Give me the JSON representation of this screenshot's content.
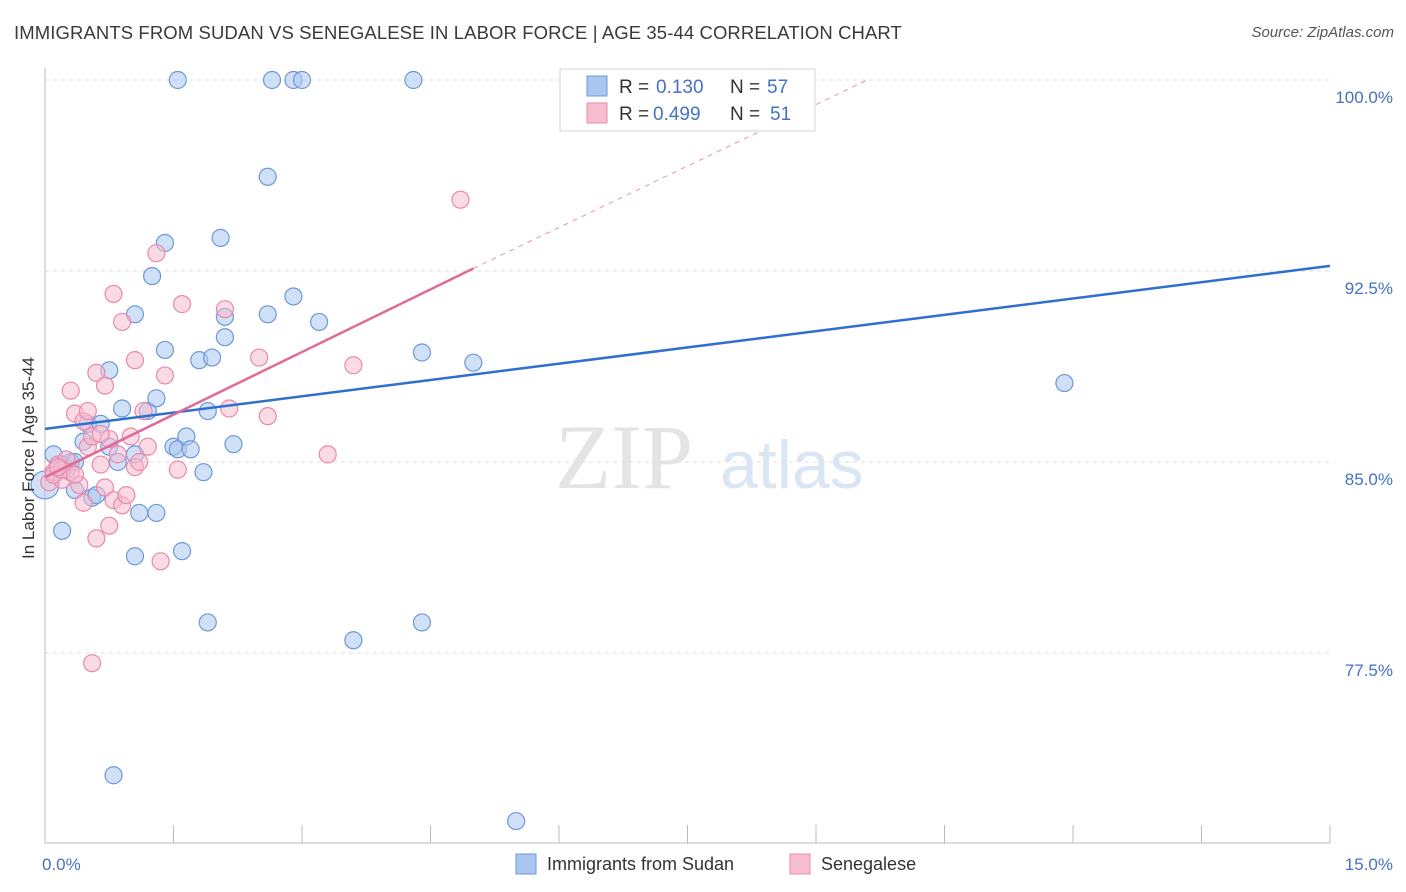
{
  "title": "IMMIGRANTS FROM SUDAN VS SENEGALESE IN LABOR FORCE | AGE 35-44 CORRELATION CHART",
  "source": "Source: ZipAtlas.com",
  "watermark": {
    "zip": "ZIP",
    "atlas": "atlas"
  },
  "colors": {
    "blue_fill": "#a9c6ee",
    "blue_stroke": "#6e98d8",
    "blue_line": "#2f6fce",
    "pink_fill": "#f6bccf",
    "pink_stroke": "#e88aab",
    "pink_line": "#e06b98",
    "grid": "#dddddd",
    "tick_label": "#4472c4"
  },
  "chart_data": {
    "type": "scatter",
    "xlabel": "",
    "ylabel": "In Labor Force | Age 35-44",
    "xlim": [
      0,
      15
    ],
    "ylim": [
      70.5,
      101
    ],
    "x_tick_labels": [
      {
        "value": 0,
        "label": "0.0%"
      },
      {
        "value": 15,
        "label": "15.0%"
      }
    ],
    "y_tick_labels": [
      {
        "value": 100,
        "label": "100.0%"
      },
      {
        "value": 92.5,
        "label": "92.5%"
      },
      {
        "value": 85,
        "label": "85.0%"
      },
      {
        "value": 77.5,
        "label": "77.5%"
      }
    ],
    "legend": [
      {
        "r_label": "R =",
        "r_value": "0.130",
        "n_label": "N =",
        "n_value": "57"
      },
      {
        "r_label": "R =",
        "r_value": "0.499",
        "n_label": "N =",
        "n_value": "51"
      }
    ],
    "series": [
      {
        "name": "Immigrants from Sudan",
        "color": "blue",
        "trend": {
          "x0": 0,
          "y0": 86.3,
          "x1": 15,
          "y1": 92.7
        },
        "points": [
          [
            0.0,
            84.1
          ],
          [
            0.1,
            85.3
          ],
          [
            0.2,
            84.9
          ],
          [
            0.25,
            84.7
          ],
          [
            0.2,
            82.3
          ],
          [
            0.35,
            83.9
          ],
          [
            0.45,
            85.8
          ],
          [
            0.5,
            86.5
          ],
          [
            0.55,
            83.6
          ],
          [
            0.65,
            86.5
          ],
          [
            0.75,
            85.6
          ],
          [
            0.75,
            88.6
          ],
          [
            0.85,
            85.0
          ],
          [
            0.9,
            87.1
          ],
          [
            1.05,
            85.3
          ],
          [
            1.05,
            81.3
          ],
          [
            1.05,
            90.8
          ],
          [
            1.1,
            83.0
          ],
          [
            1.2,
            87.0
          ],
          [
            1.25,
            92.3
          ],
          [
            1.3,
            87.5
          ],
          [
            1.3,
            83.0
          ],
          [
            1.4,
            89.4
          ],
          [
            1.4,
            93.6
          ],
          [
            1.5,
            85.6
          ],
          [
            1.55,
            85.5
          ],
          [
            1.6,
            81.5
          ],
          [
            1.65,
            86.0
          ],
          [
            1.7,
            85.5
          ],
          [
            1.8,
            89.0
          ],
          [
            1.85,
            84.6
          ],
          [
            1.9,
            87.0
          ],
          [
            1.95,
            89.1
          ],
          [
            2.05,
            93.8
          ],
          [
            2.1,
            89.9
          ],
          [
            2.1,
            90.7
          ],
          [
            2.2,
            85.7
          ],
          [
            2.6,
            96.2
          ],
          [
            2.6,
            90.8
          ],
          [
            2.9,
            91.5
          ],
          [
            3.2,
            90.5
          ],
          [
            3.6,
            78.0
          ],
          [
            4.4,
            89.3
          ],
          [
            4.4,
            78.7
          ],
          [
            5.0,
            88.9
          ],
          [
            5.5,
            70.9
          ],
          [
            11.9,
            88.1
          ],
          [
            1.55,
            100.0
          ],
          [
            2.65,
            100.0
          ],
          [
            2.9,
            100.0
          ],
          [
            3.0,
            100.0
          ],
          [
            4.3,
            100.0
          ],
          [
            0.8,
            72.7
          ],
          [
            1.9,
            78.7
          ],
          [
            0.3,
            85.0
          ],
          [
            0.6,
            83.7
          ],
          [
            0.35,
            85.0
          ]
        ]
      },
      {
        "name": "Senegalese",
        "color": "pink",
        "trend": {
          "x0": 0,
          "y0": 84.4,
          "x1": 5.0,
          "y1": 92.6
        },
        "trend_ext": {
          "x0": 5.0,
          "y0": 92.6,
          "x1": 9.6,
          "y1": 100.0
        },
        "points": [
          [
            0.05,
            84.2
          ],
          [
            0.1,
            84.6
          ],
          [
            0.15,
            84.9
          ],
          [
            0.2,
            84.3
          ],
          [
            0.25,
            85.1
          ],
          [
            0.3,
            84.6
          ],
          [
            0.3,
            87.8
          ],
          [
            0.35,
            86.9
          ],
          [
            0.4,
            84.1
          ],
          [
            0.45,
            86.6
          ],
          [
            0.45,
            83.4
          ],
          [
            0.5,
            85.6
          ],
          [
            0.5,
            87.0
          ],
          [
            0.55,
            86.0
          ],
          [
            0.6,
            88.5
          ],
          [
            0.6,
            82.0
          ],
          [
            0.55,
            77.1
          ],
          [
            0.65,
            84.9
          ],
          [
            0.7,
            84.0
          ],
          [
            0.7,
            88.0
          ],
          [
            0.75,
            82.5
          ],
          [
            0.75,
            85.9
          ],
          [
            0.8,
            83.5
          ],
          [
            0.8,
            91.6
          ],
          [
            0.85,
            85.3
          ],
          [
            0.9,
            90.5
          ],
          [
            0.9,
            83.3
          ],
          [
            1.0,
            86.0
          ],
          [
            1.05,
            84.8
          ],
          [
            1.05,
            89.0
          ],
          [
            1.15,
            87.0
          ],
          [
            1.2,
            85.6
          ],
          [
            1.3,
            93.2
          ],
          [
            1.35,
            81.1
          ],
          [
            1.4,
            88.4
          ],
          [
            1.55,
            84.7
          ],
          [
            1.6,
            91.2
          ],
          [
            2.1,
            91.0
          ],
          [
            2.15,
            87.1
          ],
          [
            2.5,
            89.1
          ],
          [
            2.6,
            86.8
          ],
          [
            3.3,
            85.3
          ],
          [
            3.6,
            88.8
          ],
          [
            4.85,
            95.3
          ],
          [
            0.1,
            84.5
          ],
          [
            0.2,
            84.7
          ],
          [
            0.35,
            84.5
          ],
          [
            0.65,
            86.1
          ],
          [
            0.95,
            83.7
          ],
          [
            1.1,
            85.0
          ],
          [
            0.15,
            84.8
          ]
        ]
      }
    ]
  },
  "bottom_legend": [
    "Immigrants from Sudan",
    "Senegalese"
  ]
}
